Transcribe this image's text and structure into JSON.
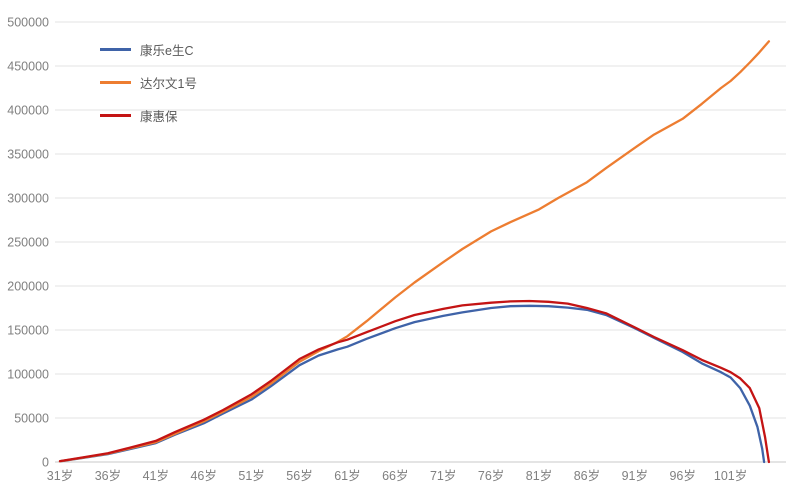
{
  "chart_data": {
    "type": "line",
    "title": "",
    "xlabel": "",
    "ylabel": "",
    "grid": "horizontal",
    "legend_position": "top-left-inside",
    "x_axis": {
      "unit": "岁",
      "tick_labels": [
        "31岁",
        "36岁",
        "41岁",
        "46岁",
        "51岁",
        "56岁",
        "61岁",
        "66岁",
        "71岁",
        "76岁",
        "81岁",
        "86岁",
        "91岁",
        "96岁",
        "101岁"
      ],
      "tick_ages": [
        31,
        36,
        41,
        46,
        51,
        56,
        61,
        66,
        71,
        76,
        81,
        86,
        91,
        96,
        101
      ],
      "age_min": 31,
      "age_max": 105.8
    },
    "y_axis": {
      "tick_labels": [
        "0",
        "50000",
        "100000",
        "150000",
        "200000",
        "250000",
        "300000",
        "350000",
        "400000",
        "450000",
        "500000"
      ],
      "tick_values": [
        0,
        50000,
        100000,
        150000,
        200000,
        250000,
        300000,
        350000,
        400000,
        450000,
        500000
      ],
      "min": 0,
      "max": 500000
    },
    "series": [
      {
        "name": "康乐e生C",
        "color": "#3f63a8",
        "points": [
          [
            31,
            800
          ],
          [
            33,
            4000
          ],
          [
            36,
            9000
          ],
          [
            38,
            14000
          ],
          [
            41,
            21500
          ],
          [
            43,
            31000
          ],
          [
            46,
            44000
          ],
          [
            48,
            55000
          ],
          [
            51,
            71000
          ],
          [
            53,
            86000
          ],
          [
            56,
            110000
          ],
          [
            58,
            121000
          ],
          [
            60,
            128000
          ],
          [
            61,
            131000
          ],
          [
            63,
            140000
          ],
          [
            66,
            152000
          ],
          [
            68,
            159000
          ],
          [
            71,
            166000
          ],
          [
            73,
            170000
          ],
          [
            76,
            175000
          ],
          [
            78,
            177000
          ],
          [
            80,
            177500
          ],
          [
            82,
            177000
          ],
          [
            84,
            175500
          ],
          [
            86,
            173000
          ],
          [
            88,
            167000
          ],
          [
            91,
            152000
          ],
          [
            93,
            141000
          ],
          [
            96,
            125000
          ],
          [
            98,
            112000
          ],
          [
            100,
            102000
          ],
          [
            101,
            96000
          ],
          [
            102,
            84000
          ],
          [
            103,
            64000
          ],
          [
            103.8,
            40000
          ],
          [
            104.3,
            15000
          ],
          [
            104.5,
            0
          ]
        ]
      },
      {
        "name": "达尔文1号",
        "color": "#ed7d31",
        "points": [
          [
            31,
            800
          ],
          [
            33,
            4200
          ],
          [
            36,
            9500
          ],
          [
            38,
            14800
          ],
          [
            41,
            22500
          ],
          [
            43,
            32000
          ],
          [
            46,
            46000
          ],
          [
            48,
            57000
          ],
          [
            51,
            74000
          ],
          [
            53,
            89000
          ],
          [
            56,
            114000
          ],
          [
            58,
            126000
          ],
          [
            60,
            136500
          ],
          [
            61,
            143000
          ],
          [
            63,
            160000
          ],
          [
            66,
            187000
          ],
          [
            68,
            204000
          ],
          [
            71,
            227000
          ],
          [
            73,
            242000
          ],
          [
            76,
            262000
          ],
          [
            78,
            272500
          ],
          [
            81,
            287000
          ],
          [
            83,
            300000
          ],
          [
            86,
            318000
          ],
          [
            88,
            334000
          ],
          [
            91,
            357000
          ],
          [
            93,
            372000
          ],
          [
            96,
            390000
          ],
          [
            98,
            407000
          ],
          [
            100,
            425000
          ],
          [
            101,
            433000
          ],
          [
            102,
            443000
          ],
          [
            103,
            454000
          ],
          [
            104,
            465500
          ],
          [
            105,
            478000
          ]
        ]
      },
      {
        "name": "康惠保",
        "color": "#c41414",
        "points": [
          [
            31,
            1000
          ],
          [
            33,
            4500
          ],
          [
            36,
            10000
          ],
          [
            38,
            15500
          ],
          [
            41,
            24000
          ],
          [
            43,
            34000
          ],
          [
            46,
            48000
          ],
          [
            48,
            59000
          ],
          [
            51,
            77000
          ],
          [
            53,
            92000
          ],
          [
            56,
            117000
          ],
          [
            58,
            128000
          ],
          [
            60,
            136000
          ],
          [
            61,
            139000
          ],
          [
            63,
            147500
          ],
          [
            66,
            160000
          ],
          [
            68,
            167000
          ],
          [
            71,
            174000
          ],
          [
            73,
            178000
          ],
          [
            76,
            181000
          ],
          [
            78,
            182500
          ],
          [
            80,
            183000
          ],
          [
            82,
            182000
          ],
          [
            84,
            180000
          ],
          [
            86,
            175000
          ],
          [
            88,
            169000
          ],
          [
            91,
            153000
          ],
          [
            93,
            142000
          ],
          [
            96,
            127000
          ],
          [
            98,
            116000
          ],
          [
            100,
            107000
          ],
          [
            101,
            102000
          ],
          [
            102,
            95000
          ],
          [
            103,
            84000
          ],
          [
            104,
            61000
          ],
          [
            104.6,
            28000
          ],
          [
            105,
            0
          ]
        ]
      }
    ]
  },
  "style": {
    "background": "#ffffff",
    "gridline_color": "#e3e3e3",
    "axis_line_color": "#c9c9c9",
    "axis_label_color": "#808080",
    "legend_text_color": "#595959"
  }
}
